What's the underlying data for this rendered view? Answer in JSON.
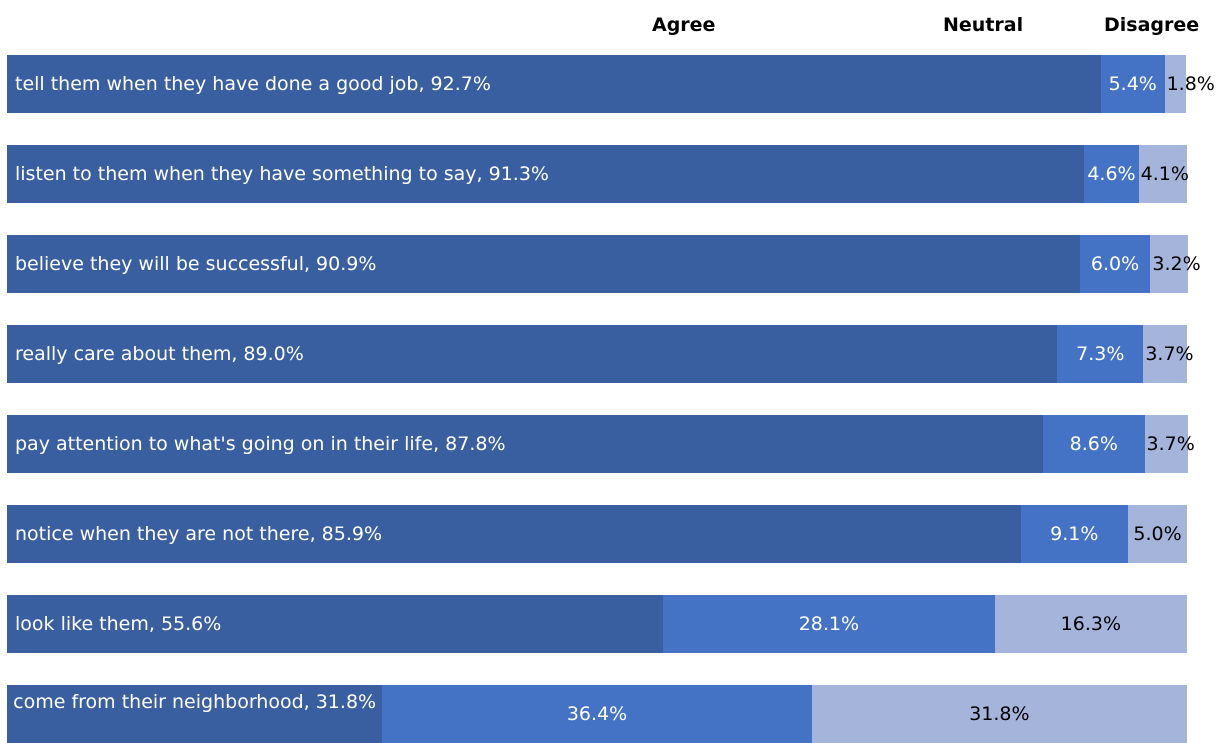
{
  "legend": {
    "agree": "Agree",
    "neutral": "Neutral",
    "disagree": "Disagree"
  },
  "colors": {
    "agree": "#3a5fa0",
    "neutral": "#4472c4",
    "disagree": "#a4b4db"
  },
  "chart_data": {
    "type": "bar",
    "orientation": "horizontal",
    "stacked": true,
    "xlim": [
      0,
      100
    ],
    "grid": false,
    "legend": "top",
    "series": [
      {
        "name": "Agree",
        "values": [
          92.7,
          91.3,
          90.9,
          89.0,
          87.8,
          85.9,
          55.6,
          31.8
        ]
      },
      {
        "name": "Neutral",
        "values": [
          5.4,
          4.6,
          6.0,
          7.3,
          8.6,
          9.1,
          28.1,
          36.4
        ]
      },
      {
        "name": "Disagree",
        "values": [
          1.8,
          4.1,
          3.2,
          3.7,
          3.7,
          5.0,
          16.3,
          31.8
        ]
      }
    ],
    "categories": [
      "tell them when they have done a good job",
      "listen to them when they have something to say",
      "believe they will be successful",
      "really care about them",
      "pay attention to what's going on in their life",
      "notice when they are not there",
      "look like them",
      "come from their neighborhood"
    ],
    "labels": [
      {
        "agree": "tell them when they have done a good job, 92.7%",
        "neutral": "5.4%",
        "disagree": "1.8%"
      },
      {
        "agree": "listen to them when they have something to say, 91.3%",
        "neutral": "4.6%",
        "disagree": "4.1%"
      },
      {
        "agree": "believe they will be successful, 90.9%",
        "neutral": "6.0%",
        "disagree": "3.2%"
      },
      {
        "agree": "really care about them, 89.0%",
        "neutral": "7.3%",
        "disagree": "3.7%"
      },
      {
        "agree": "pay attention to what's going on in their life, 87.8%",
        "neutral": "8.6%",
        "disagree": "3.7%"
      },
      {
        "agree": "notice when they are not there, 85.9%",
        "neutral": "9.1%",
        "disagree": "5.0%"
      },
      {
        "agree": "look like them, 55.6%",
        "neutral": "28.1%",
        "disagree": "16.3%"
      },
      {
        "agree": "come from their neighborhood, 31.8%",
        "neutral": "36.4%",
        "disagree": "31.8%"
      }
    ]
  }
}
